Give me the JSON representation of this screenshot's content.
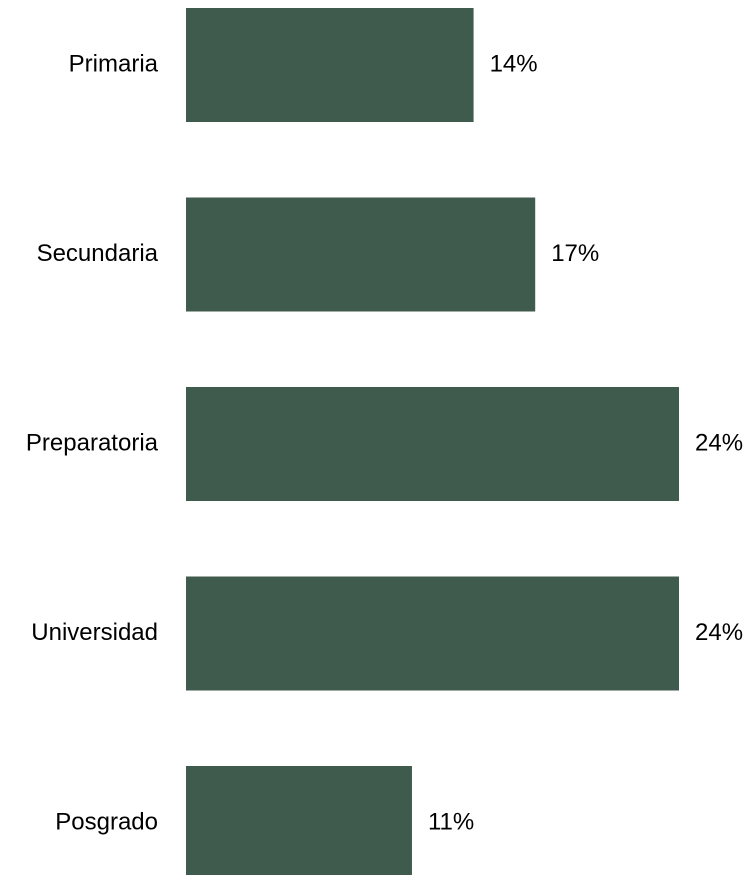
{
  "chart_data": {
    "type": "bar",
    "orientation": "horizontal",
    "categories": [
      "Primaria",
      "Secundaria",
      "Preparatoria",
      "Universidad",
      "Posgrado"
    ],
    "values": [
      14,
      17,
      24,
      24,
      11
    ],
    "value_labels": [
      "14%",
      "17%",
      "24%",
      "24%",
      "11%"
    ],
    "unit": "%",
    "bar_color": "#3f5b4e",
    "xlim": [
      0,
      24
    ],
    "grid": false,
    "legend": "none"
  }
}
